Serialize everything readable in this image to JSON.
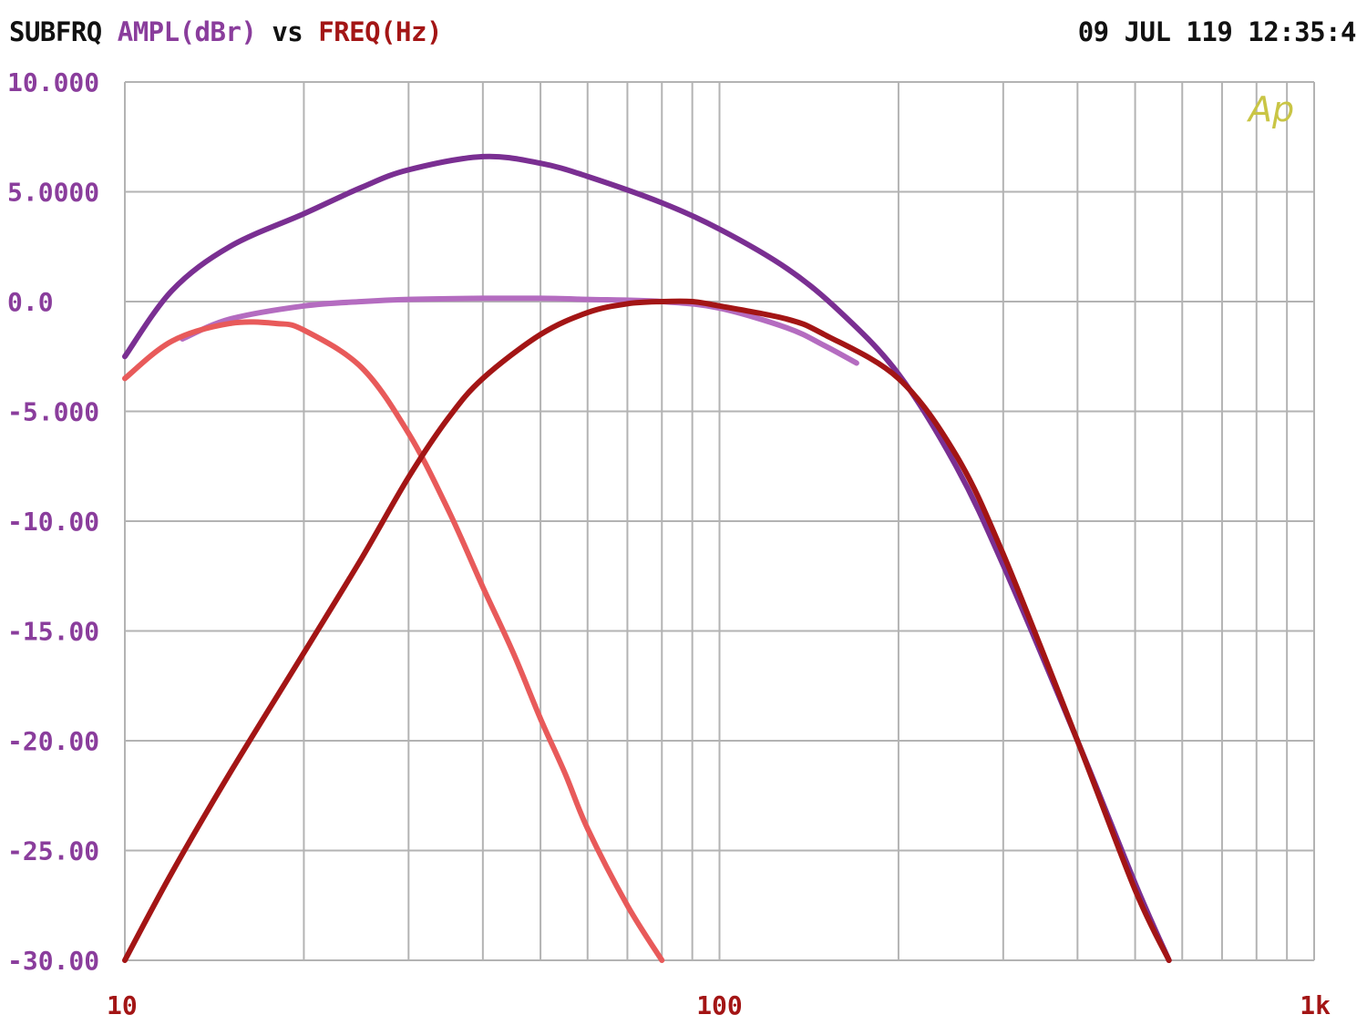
{
  "header": {
    "prefix": "SUBFRQ",
    "y_quantity": "AMPL(dBr)",
    "vs": "vs",
    "x_quantity": "FREQ(Hz)",
    "timestamp": "09 JUL 119 12:35:4"
  },
  "logo": "Ap",
  "colors": {
    "grid": "#b3b3b3",
    "y_tick_text": "#8a3d9c",
    "x_tick_text": "#a31515",
    "logo": "#c9c545"
  },
  "chart_data": {
    "type": "line",
    "title": "SUBFRQ AMPL(dBr) vs FREQ(Hz)",
    "xlabel": "FREQ(Hz)",
    "ylabel": "AMPL(dBr)",
    "xscale": "log",
    "xlim": [
      10,
      1000
    ],
    "ylim": [
      -30,
      10
    ],
    "grid": true,
    "x_tick_labels": [
      {
        "value": 10,
        "label": "10"
      },
      {
        "value": 100,
        "label": "100"
      },
      {
        "value": 1000,
        "label": "1k"
      }
    ],
    "y_tick_labels": [
      {
        "value": 10,
        "label": "10.000"
      },
      {
        "value": 5,
        "label": "5.0000"
      },
      {
        "value": 0,
        "label": "0.0"
      },
      {
        "value": -5,
        "label": "-5.000"
      },
      {
        "value": -10,
        "label": "-10.00"
      },
      {
        "value": -15,
        "label": "-15.00"
      },
      {
        "value": -20,
        "label": "-20.00"
      },
      {
        "value": -25,
        "label": "-25.00"
      },
      {
        "value": -30,
        "label": "-30.00"
      }
    ],
    "series": [
      {
        "color": "#7a2f92",
        "x": [
          10,
          12,
          15,
          20,
          25,
          30,
          40,
          50,
          60,
          80,
          100,
          130,
          160,
          200,
          250,
          300,
          400,
          500,
          570
        ],
        "y": [
          -2.5,
          0.5,
          2.5,
          4.0,
          5.2,
          6.0,
          6.6,
          6.3,
          5.7,
          4.5,
          3.3,
          1.5,
          -0.5,
          -3.3,
          -7.5,
          -12.0,
          -20.0,
          -26.5,
          -30.0
        ]
      },
      {
        "color": "#b46cc0",
        "x": [
          12.5,
          15,
          20,
          25,
          30,
          40,
          50,
          60,
          80,
          100,
          130,
          150,
          170
        ],
        "y": [
          -1.7,
          -0.8,
          -0.2,
          0.0,
          0.1,
          0.15,
          0.15,
          0.1,
          0.0,
          -0.3,
          -1.2,
          -2.0,
          -2.8
        ]
      },
      {
        "color": "#e85a5a",
        "x": [
          10,
          12,
          15,
          18,
          20,
          25,
          30,
          35,
          40,
          45,
          50,
          55,
          60,
          70,
          80
        ],
        "y": [
          -3.5,
          -1.8,
          -1.0,
          -1.0,
          -1.3,
          -3.0,
          -6.0,
          -9.5,
          -13.0,
          -16.0,
          -19.0,
          -21.5,
          -24.0,
          -27.5,
          -30.0
        ]
      },
      {
        "color": "#a31515",
        "x": [
          10,
          12,
          15,
          20,
          25,
          30,
          35,
          40,
          50,
          60,
          70,
          80,
          90,
          100,
          130,
          150,
          200,
          250,
          300,
          400,
          500,
          570
        ],
        "y": [
          -30.0,
          -26.0,
          -21.5,
          -16.0,
          -11.7,
          -8.0,
          -5.3,
          -3.5,
          -1.5,
          -0.5,
          -0.1,
          0.0,
          0.0,
          -0.2,
          -0.8,
          -1.5,
          -3.5,
          -7.0,
          -11.5,
          -20.0,
          -26.8,
          -30.0
        ]
      }
    ]
  }
}
